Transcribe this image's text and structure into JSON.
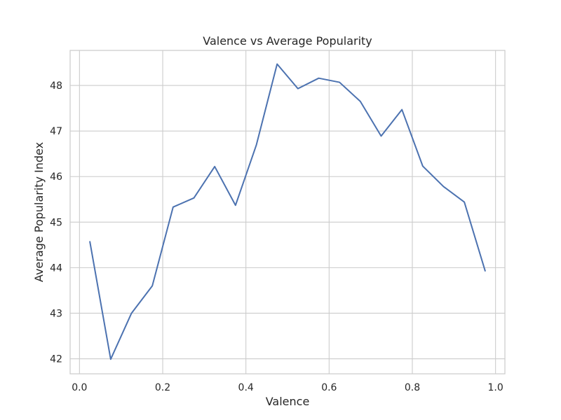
{
  "chart_data": {
    "type": "line",
    "title": "Valence vs Average Popularity",
    "xlabel": "Valence",
    "ylabel": "Average Popularity Index",
    "xlim": [
      -0.0225,
      1.0225
    ],
    "ylim": [
      41.67,
      48.77
    ],
    "xticks": [
      0.0,
      0.2,
      0.4,
      0.6,
      0.8,
      1.0
    ],
    "xtick_labels": [
      "0.0",
      "0.2",
      "0.4",
      "0.6",
      "0.8",
      "1.0"
    ],
    "yticks": [
      42,
      43,
      44,
      45,
      46,
      47,
      48
    ],
    "ytick_labels": [
      "42",
      "43",
      "44",
      "45",
      "46",
      "47",
      "48"
    ],
    "grid": true,
    "colors": {
      "line": "#4c72b0",
      "grid": "#cccccc",
      "frame": "#cccccc",
      "text": "#262626"
    },
    "series": [
      {
        "x": [
          0.025,
          0.075,
          0.125,
          0.175,
          0.225,
          0.275,
          0.325,
          0.375,
          0.425,
          0.475,
          0.525,
          0.575,
          0.625,
          0.675,
          0.725,
          0.775,
          0.825,
          0.875,
          0.925,
          0.975
        ],
        "y": [
          44.57,
          41.99,
          43.0,
          43.6,
          45.33,
          45.53,
          46.22,
          45.37,
          46.69,
          48.47,
          47.93,
          48.16,
          48.07,
          47.65,
          46.89,
          47.47,
          46.23,
          45.78,
          45.44,
          43.93
        ]
      }
    ]
  }
}
